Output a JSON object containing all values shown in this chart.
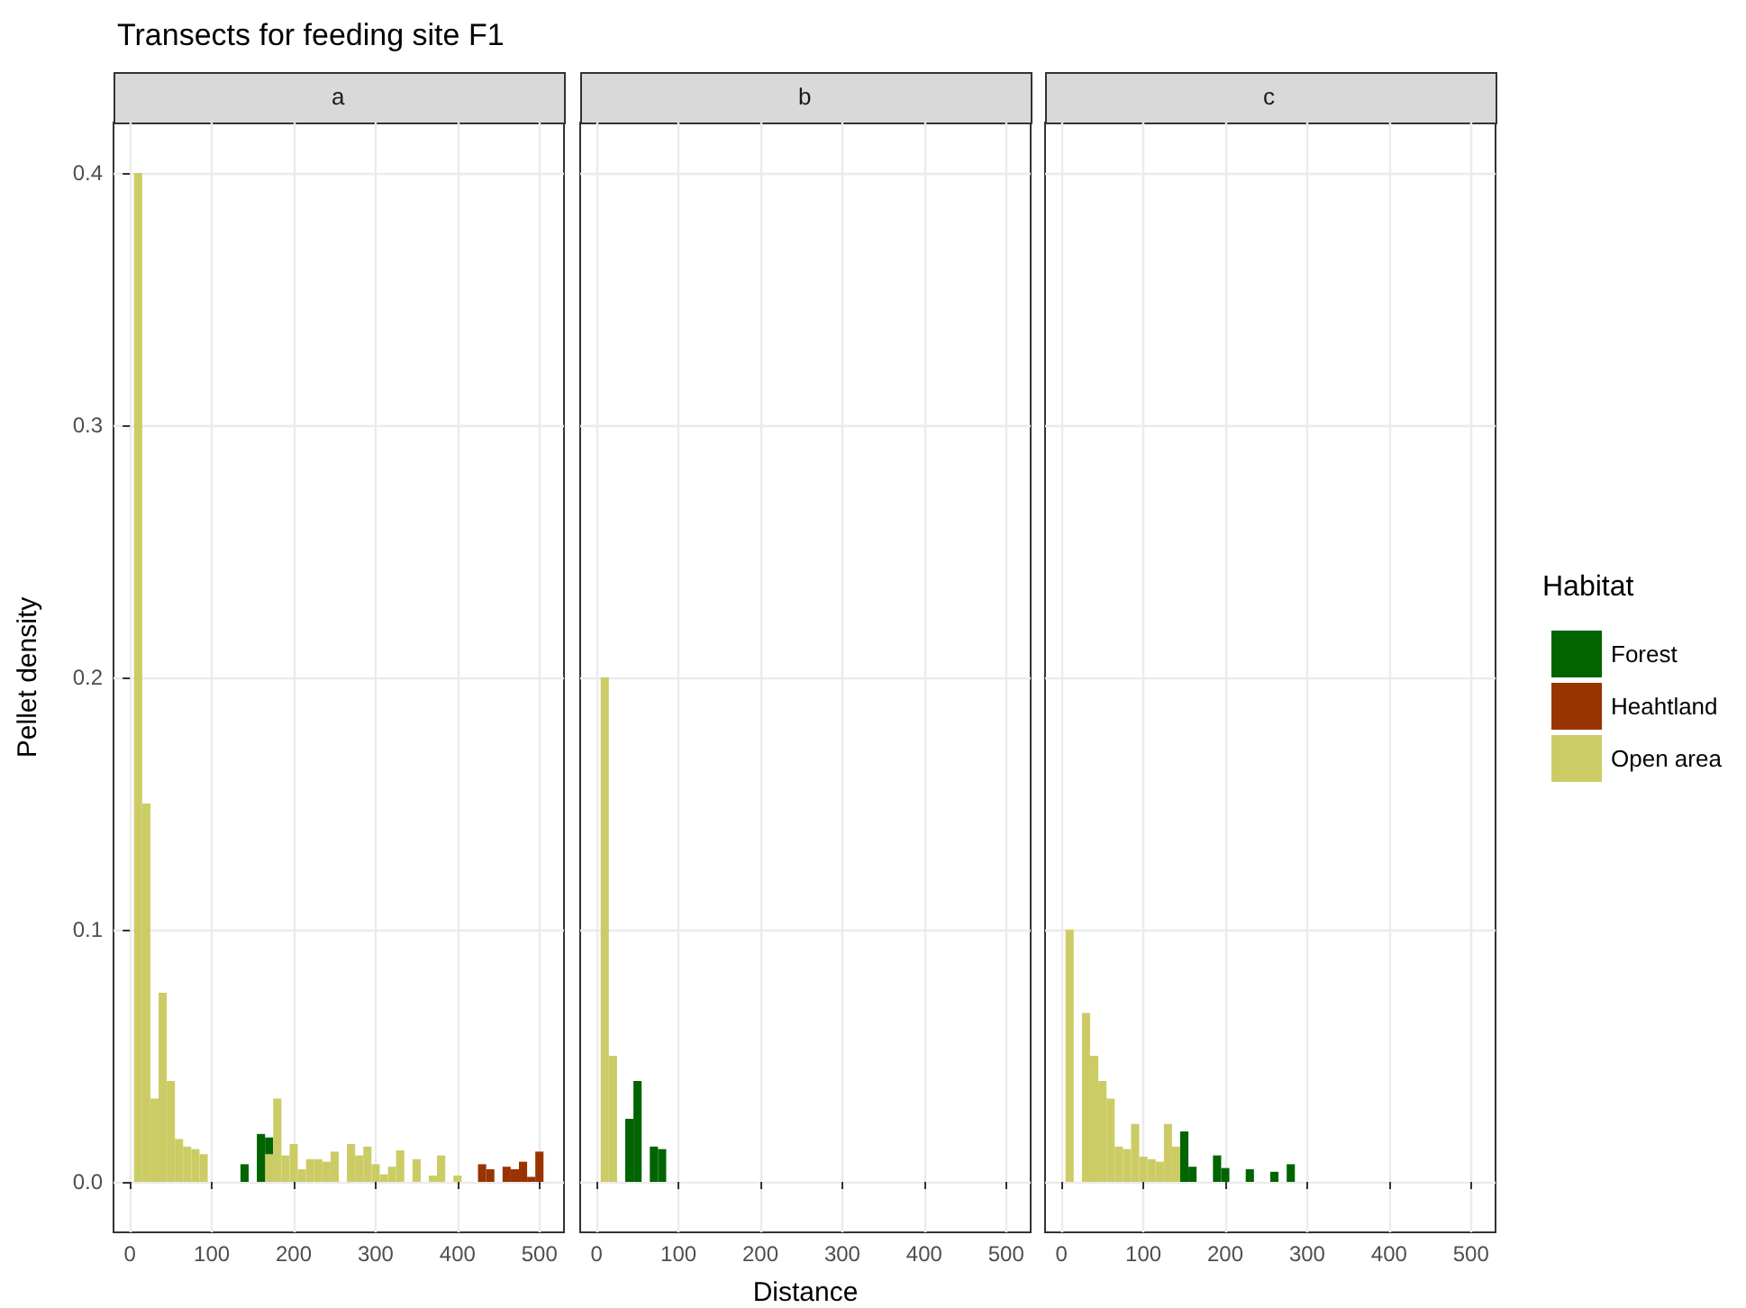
{
  "chart_data": [
    {
      "type": "bar",
      "title": "Transects for feeding site F1",
      "subtitle": "a",
      "ylabel": "Pellet density",
      "grid": true,
      "xlim": [
        -20,
        530
      ],
      "xticks": [
        0,
        100,
        200,
        300,
        400,
        500
      ],
      "ylim": [
        -0.02,
        0.42
      ],
      "yticks": [
        {
          "value": 0,
          "label": "0.0"
        },
        {
          "value": 0.1,
          "label": "0.1"
        },
        {
          "value": 0.2,
          "label": "0.2"
        },
        {
          "value": 0.3,
          "label": "0.3"
        },
        {
          "value": 0.4,
          "label": "0.4"
        }
      ],
      "series": [
        {
          "color": "#006400",
          "x": [
            140,
            160,
            170
          ],
          "values": [
            0.007,
            0.019,
            0.0176
          ]
        },
        {
          "color": "#993300",
          "x": [
            430,
            440,
            460,
            470,
            480,
            490,
            500
          ],
          "values": [
            0.007,
            0.005,
            0.006,
            0.005,
            0.008,
            0.002,
            0.012
          ]
        },
        {
          "color": "#cccc66",
          "x": [
            10,
            20,
            30,
            40,
            50,
            60,
            70,
            80,
            90,
            170,
            180,
            190,
            200,
            210,
            220,
            230,
            240,
            250,
            270,
            280,
            290,
            300,
            310,
            320,
            330,
            350,
            370,
            380,
            400
          ],
          "values": [
            0.4,
            0.15,
            0.033,
            0.075,
            0.04,
            0.017,
            0.014,
            0.013,
            0.011,
            0.011,
            0.033,
            0.0105,
            0.015,
            0.005,
            0.009,
            0.009,
            0.008,
            0.012,
            0.015,
            0.0105,
            0.014,
            0.007,
            0.003,
            0.006,
            0.0125,
            0.009,
            0.0025,
            0.0105,
            0.0025
          ]
        }
      ]
    },
    {
      "type": "bar",
      "subtitle": "b",
      "xlabel": "Distance",
      "grid": true,
      "tick_labels": "x",
      "xlim": [
        -20,
        530
      ],
      "xticks": [
        0,
        100,
        200,
        300,
        400,
        500
      ],
      "ylim": [
        -0.02,
        0.42
      ],
      "yticks": [
        0,
        0.1,
        0.2,
        0.3,
        0.4
      ],
      "series": [
        {
          "color": "#006400",
          "x": [
            40,
            50,
            70,
            80
          ],
          "values": [
            0.025,
            0.04,
            0.014,
            0.013
          ]
        },
        {
          "color": "#cccc66",
          "x": [
            10,
            20
          ],
          "values": [
            0.2,
            0.05
          ]
        }
      ]
    },
    {
      "type": "bar",
      "subtitle": "c",
      "grid": true,
      "tick_labels": "x",
      "legend": "right",
      "legend_title": "Habitat",
      "xlim": [
        -20,
        530
      ],
      "xticks": [
        0,
        100,
        200,
        300,
        400,
        500
      ],
      "ylim": [
        -0.02,
        0.42
      ],
      "yticks": [
        0,
        0.1,
        0.2,
        0.3,
        0.4
      ],
      "series": [
        {
          "name": "Forest",
          "color": "#006400",
          "x": [
            150,
            160,
            190,
            200,
            230,
            260,
            280
          ],
          "values": [
            0.02,
            0.006,
            0.0105,
            0.0055,
            0.005,
            0.004,
            0.007
          ]
        },
        {
          "name": "Heahtland",
          "color": "#993300"
        },
        {
          "name": "Open area",
          "color": "#cccc66",
          "x": [
            10,
            30,
            40,
            50,
            60,
            70,
            80,
            90,
            100,
            110,
            120,
            130,
            140
          ],
          "values": [
            0.1,
            0.067,
            0.05,
            0.04,
            0.033,
            0.014,
            0.013,
            0.023,
            0.01,
            0.009,
            0.008,
            0.023,
            0.014
          ]
        }
      ]
    }
  ]
}
